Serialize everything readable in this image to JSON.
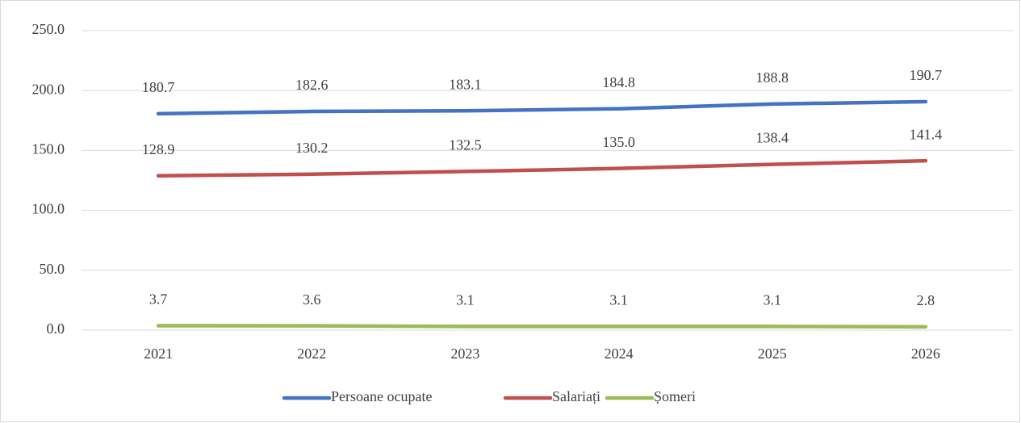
{
  "chart_data": {
    "type": "line",
    "categories": [
      "2021",
      "2022",
      "2023",
      "2024",
      "2025",
      "2026"
    ],
    "series": [
      {
        "name": "Persoane ocupate",
        "color": "#4472c4",
        "values": [
          180.7,
          182.6,
          183.1,
          184.8,
          188.8,
          190.7
        ],
        "value_labels": [
          "180.7",
          "182.6",
          "183.1",
          "184.8",
          "188.8",
          "190.7"
        ]
      },
      {
        "name": "Salariați",
        "color": "#c0504d",
        "values": [
          128.9,
          130.2,
          132.5,
          135.0,
          138.4,
          141.4
        ],
        "value_labels": [
          "128.9",
          "130.2",
          "132.5",
          "135.0",
          "138.4",
          "141.4"
        ]
      },
      {
        "name": "Șomeri",
        "color": "#9bbb59",
        "values": [
          3.7,
          3.6,
          3.1,
          3.1,
          3.1,
          2.8
        ],
        "value_labels": [
          "3.7",
          "3.6",
          "3.1",
          "3.1",
          "3.1",
          "2.8"
        ]
      }
    ],
    "ylim": [
      0,
      250
    ],
    "yticks": [
      {
        "value": 0,
        "label": "0.0"
      },
      {
        "value": 50,
        "label": "50.0"
      },
      {
        "value": 100,
        "label": "100.0"
      },
      {
        "value": 150,
        "label": "150.0"
      },
      {
        "value": 200,
        "label": "200.0"
      },
      {
        "value": 250,
        "label": "250.0"
      }
    ],
    "grid": true,
    "legend": "bottom"
  }
}
